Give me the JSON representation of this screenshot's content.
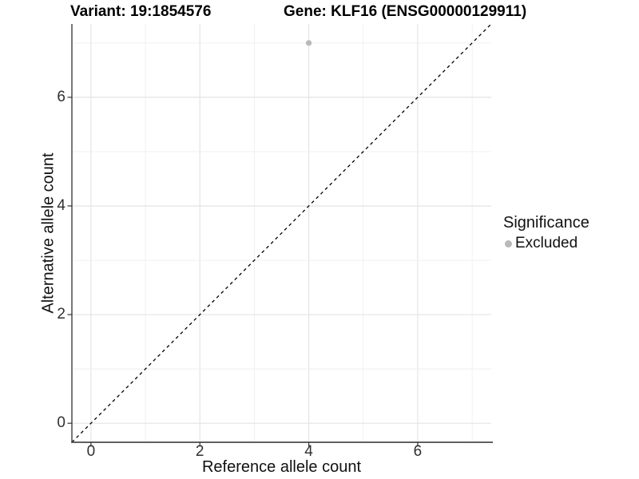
{
  "title": {
    "variant_label": "Variant: 19:1854576",
    "gene_label": "Gene: KLF16 (ENSG00000129911)"
  },
  "axes": {
    "x": {
      "label": "Reference allele count"
    },
    "y": {
      "label": "Alternative allele count"
    }
  },
  "legend": {
    "title": "Significance",
    "items": [
      {
        "label": "Excluded",
        "color": "#b9b9b9"
      }
    ]
  },
  "colors": {
    "axis_line": "#4a4a4a",
    "tick_mark": "#333333",
    "grid_major": "#e4e4e4",
    "grid_minor": "#efefef",
    "identity_line": "#000000",
    "background": "#ffffff"
  },
  "chart_data": {
    "type": "scatter",
    "title": "Variant: 19:1854576    Gene: KLF16 (ENSG00000129911)",
    "xlabel": "Reference allele count",
    "ylabel": "Alternative allele count",
    "xlim": [
      -0.35,
      7.35
    ],
    "ylim": [
      -0.35,
      7.35
    ],
    "x_ticks": [
      0,
      2,
      4,
      6
    ],
    "y_ticks": [
      0,
      2,
      4,
      6
    ],
    "grid_x": [
      0,
      1,
      2,
      3,
      4,
      5,
      6,
      7
    ],
    "grid_y": [
      0,
      1,
      2,
      3,
      4,
      5,
      6,
      7
    ],
    "grid": "on",
    "legend_position": "right",
    "series": [
      {
        "name": "Excluded",
        "color": "#b9b9b9",
        "points": [
          {
            "x": 4,
            "y": 7
          }
        ]
      }
    ],
    "reference_line": {
      "type": "identity",
      "slope": 1,
      "intercept": 0,
      "style": "dashed",
      "color": "#000000"
    }
  }
}
